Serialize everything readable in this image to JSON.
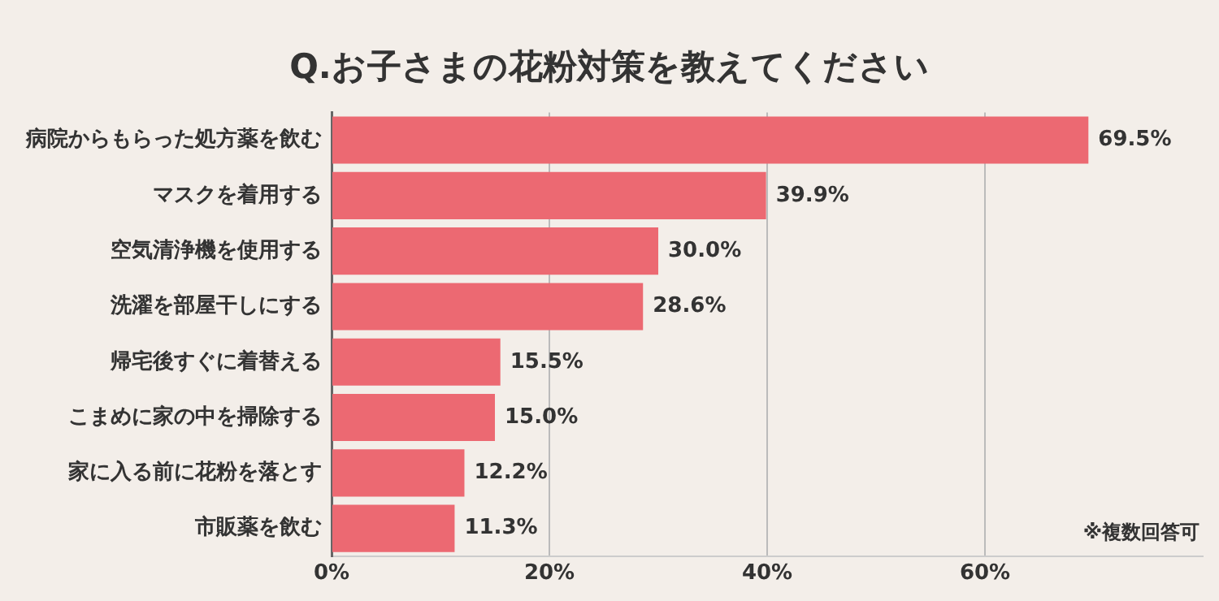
{
  "chart_data": {
    "type": "bar",
    "orientation": "horizontal",
    "title": "Q.お子さまの花粉対策を教えてください",
    "categories": [
      "病院からもらった処方薬を飲む",
      "マスクを着用する",
      "空気清浄機を使用する",
      "洗濯を部屋干しにする",
      "帰宅後すぐに着替える",
      "こまめに家の中を掃除する",
      "家に入る前に花粉を落とす",
      "市販薬を飲む"
    ],
    "values": [
      69.5,
      39.9,
      30.0,
      28.6,
      15.5,
      15.0,
      12.2,
      11.3
    ],
    "value_labels": [
      "69.5%",
      "39.9%",
      "30.0%",
      "28.6%",
      "15.5%",
      "15.0%",
      "12.2%",
      "11.3%"
    ],
    "color": "#ec6972",
    "xlim": [
      0,
      80
    ],
    "xticks": [
      {
        "value": 0,
        "label": "0%"
      },
      {
        "value": 20,
        "label": "20%"
      },
      {
        "value": 40,
        "label": "40%"
      },
      {
        "value": 60,
        "label": "60%"
      }
    ],
    "grid": "x",
    "legend": false,
    "annotations": [
      "※複数回答可"
    ]
  }
}
